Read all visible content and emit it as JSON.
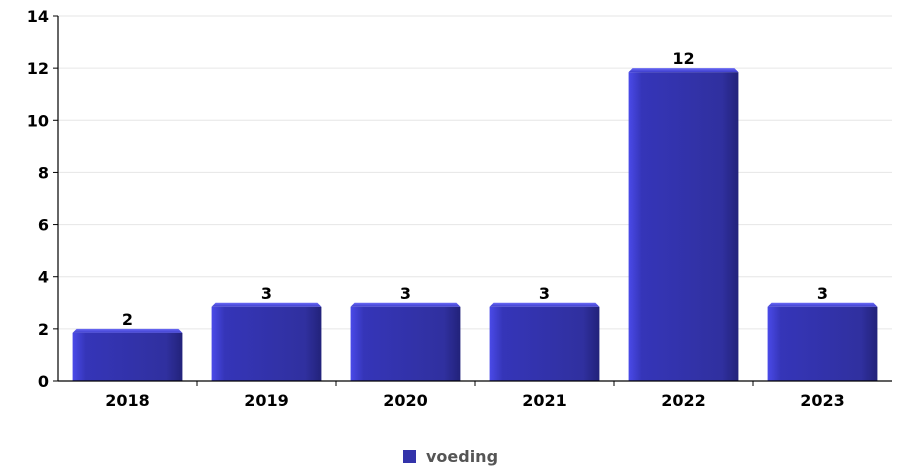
{
  "chart_data": {
    "type": "bar",
    "categories": [
      "2018",
      "2019",
      "2020",
      "2021",
      "2022",
      "2023"
    ],
    "series": [
      {
        "name": "voeding",
        "values": [
          2,
          3,
          3,
          3,
          12,
          3
        ]
      }
    ],
    "ylim": [
      0,
      14
    ],
    "yticks": [
      "0",
      "2",
      "4",
      "6",
      "8",
      "10",
      "12",
      "14"
    ],
    "grid": true,
    "legend_position": "bottom-center",
    "bar_color": "#3333aa"
  }
}
